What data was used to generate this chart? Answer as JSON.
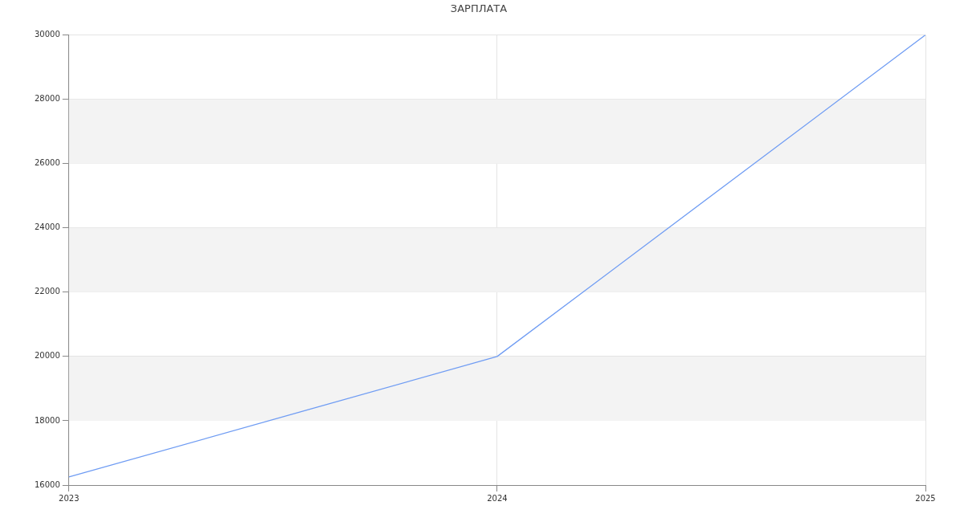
{
  "chart_data": {
    "type": "line",
    "title": "ЗАРПЛАТА",
    "categories": [
      "2023",
      "2024",
      "2025"
    ],
    "series": [
      {
        "color": "#6f9cf3",
        "values": [
          16250,
          20000,
          30000
        ]
      }
    ],
    "ylim": [
      16000,
      30000
    ],
    "yticks": [
      16000,
      18000,
      20000,
      22000,
      24000,
      26000,
      28000,
      30000
    ],
    "grid": true,
    "legend": false,
    "marker": "none",
    "line_style": "solid"
  }
}
